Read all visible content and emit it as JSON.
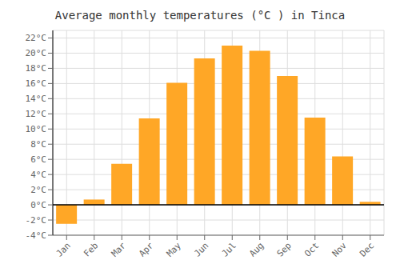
{
  "chart_data": {
    "type": "bar",
    "title": "Average monthly temperatures (°C ) in Tinca",
    "categories": [
      "Jan",
      "Feb",
      "Mar",
      "Apr",
      "May",
      "Jun",
      "Jul",
      "Aug",
      "Sep",
      "Oct",
      "Nov",
      "Dec"
    ],
    "values": [
      -2.5,
      0.7,
      5.4,
      11.4,
      16.1,
      19.3,
      21.0,
      20.3,
      17.0,
      11.5,
      6.4,
      0.4
    ],
    "color": "#FFA726",
    "ylim": [
      -4,
      23
    ],
    "yticks": [
      {
        "value": -4,
        "label": "-4°C"
      },
      {
        "value": -2,
        "label": "-2°C"
      },
      {
        "value": 0,
        "label": "0°C"
      },
      {
        "value": 2,
        "label": "2°C"
      },
      {
        "value": 4,
        "label": "4°C"
      },
      {
        "value": 6,
        "label": "6°C"
      },
      {
        "value": 8,
        "label": "8°C"
      },
      {
        "value": 10,
        "label": "10°C"
      },
      {
        "value": 12,
        "label": "12°C"
      },
      {
        "value": 14,
        "label": "14°C"
      },
      {
        "value": 16,
        "label": "16°C"
      },
      {
        "value": 18,
        "label": "18°C"
      },
      {
        "value": 20,
        "label": "20°C"
      },
      {
        "value": 22,
        "label": "22°C"
      }
    ],
    "grid": true
  }
}
